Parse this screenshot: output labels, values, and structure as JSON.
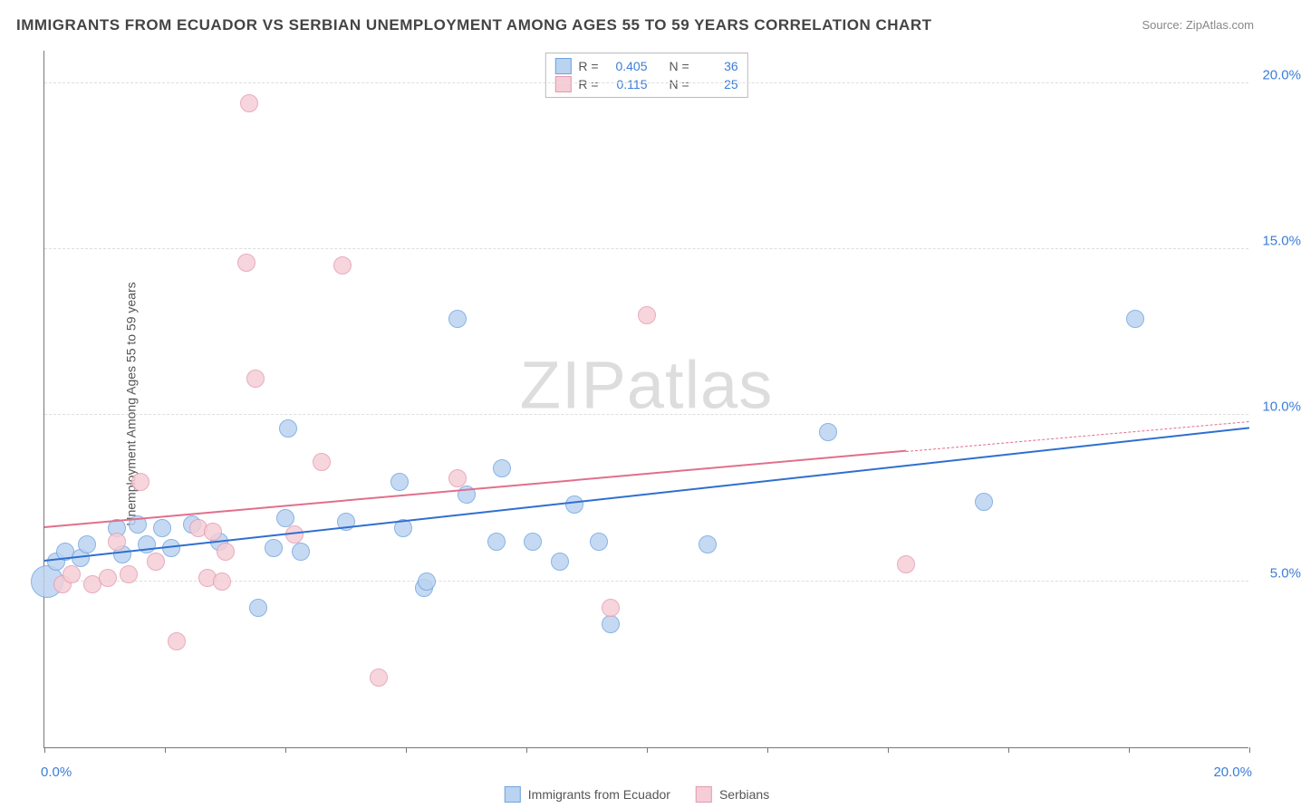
{
  "title": "IMMIGRANTS FROM ECUADOR VS SERBIAN UNEMPLOYMENT AMONG AGES 55 TO 59 YEARS CORRELATION CHART",
  "source": "Source: ZipAtlas.com",
  "watermark_a": "ZIP",
  "watermark_b": "atlas",
  "y_axis_label": "Unemployment Among Ages 55 to 59 years",
  "chart": {
    "type": "scatter",
    "background_color": "#ffffff",
    "grid_color": "#dddddd",
    "axis_color": "#777777",
    "tick_label_color": "#3b7dd8",
    "xlim": [
      0,
      20
    ],
    "ylim": [
      0,
      21
    ],
    "y_gridlines": [
      5,
      10,
      15,
      20
    ],
    "y_tick_labels": [
      "5.0%",
      "10.0%",
      "15.0%",
      "20.0%"
    ],
    "x_ticks": [
      0,
      2,
      4,
      6,
      8,
      10,
      12,
      14,
      16,
      18,
      20
    ],
    "x_tick_labels": {
      "0": "0.0%",
      "20": "20.0%"
    },
    "series": [
      {
        "name": "Immigrants from Ecuador",
        "fill": "#b9d3f0",
        "stroke": "#6fa3e0",
        "line_color": "#2f6fd0",
        "r_label": "R =",
        "r_value": "0.405",
        "n_label": "N =",
        "n_value": "36",
        "trend": {
          "x1": 0,
          "y1": 5.6,
          "x2": 20,
          "y2": 9.6
        },
        "marker_radius": 10,
        "points": [
          {
            "x": 0.05,
            "y": 5.0,
            "r": 18
          },
          {
            "x": 0.2,
            "y": 5.6
          },
          {
            "x": 0.35,
            "y": 5.9
          },
          {
            "x": 0.6,
            "y": 5.7
          },
          {
            "x": 0.7,
            "y": 6.1
          },
          {
            "x": 1.2,
            "y": 6.6
          },
          {
            "x": 1.3,
            "y": 5.8
          },
          {
            "x": 1.55,
            "y": 6.7
          },
          {
            "x": 1.7,
            "y": 6.1
          },
          {
            "x": 1.95,
            "y": 6.6
          },
          {
            "x": 2.1,
            "y": 6.0
          },
          {
            "x": 2.45,
            "y": 6.7
          },
          {
            "x": 3.55,
            "y": 4.2
          },
          {
            "x": 3.8,
            "y": 6.0
          },
          {
            "x": 4.0,
            "y": 6.9
          },
          {
            "x": 4.05,
            "y": 9.6
          },
          {
            "x": 5.0,
            "y": 6.8
          },
          {
            "x": 5.9,
            "y": 8.0
          },
          {
            "x": 5.95,
            "y": 6.6
          },
          {
            "x": 6.3,
            "y": 4.8
          },
          {
            "x": 6.35,
            "y": 5.0
          },
          {
            "x": 6.85,
            "y": 12.9
          },
          {
            "x": 7.0,
            "y": 7.6
          },
          {
            "x": 7.5,
            "y": 6.2
          },
          {
            "x": 7.6,
            "y": 8.4
          },
          {
            "x": 8.1,
            "y": 6.2
          },
          {
            "x": 8.55,
            "y": 5.6
          },
          {
            "x": 8.8,
            "y": 7.3
          },
          {
            "x": 9.2,
            "y": 6.2
          },
          {
            "x": 9.4,
            "y": 3.7
          },
          {
            "x": 11.0,
            "y": 6.1
          },
          {
            "x": 13.0,
            "y": 9.5
          },
          {
            "x": 15.6,
            "y": 7.4
          },
          {
            "x": 18.1,
            "y": 12.9
          },
          {
            "x": 4.25,
            "y": 5.9
          },
          {
            "x": 2.9,
            "y": 6.2
          }
        ]
      },
      {
        "name": "Serbians",
        "fill": "#f6cdd6",
        "stroke": "#e49aaf",
        "line_color": "#e16f8c",
        "r_label": "R =",
        "r_value": "0.115",
        "n_label": "N =",
        "n_value": "25",
        "trend": {
          "x1": 0,
          "y1": 6.6,
          "x2": 14.3,
          "y2": 8.9,
          "dash_to_x": 20,
          "dash_to_y": 9.8
        },
        "marker_radius": 10,
        "points": [
          {
            "x": 0.3,
            "y": 4.9
          },
          {
            "x": 0.45,
            "y": 5.2
          },
          {
            "x": 0.8,
            "y": 4.9
          },
          {
            "x": 1.05,
            "y": 5.1
          },
          {
            "x": 1.4,
            "y": 5.2
          },
          {
            "x": 1.6,
            "y": 8.0
          },
          {
            "x": 1.85,
            "y": 5.6
          },
          {
            "x": 2.2,
            "y": 3.2
          },
          {
            "x": 2.55,
            "y": 6.6
          },
          {
            "x": 2.7,
            "y": 5.1
          },
          {
            "x": 2.95,
            "y": 5.0
          },
          {
            "x": 3.0,
            "y": 5.9
          },
          {
            "x": 3.35,
            "y": 14.6
          },
          {
            "x": 3.4,
            "y": 19.4
          },
          {
            "x": 3.5,
            "y": 11.1
          },
          {
            "x": 4.15,
            "y": 6.4
          },
          {
            "x": 4.6,
            "y": 8.6
          },
          {
            "x": 4.95,
            "y": 14.5
          },
          {
            "x": 5.55,
            "y": 2.1
          },
          {
            "x": 6.85,
            "y": 8.1
          },
          {
            "x": 9.4,
            "y": 4.2
          },
          {
            "x": 10.0,
            "y": 13.0
          },
          {
            "x": 14.3,
            "y": 5.5
          },
          {
            "x": 2.8,
            "y": 6.5
          },
          {
            "x": 1.2,
            "y": 6.2
          }
        ]
      }
    ]
  },
  "legend_bottom": [
    {
      "swatch_fill": "#b9d3f0",
      "swatch_stroke": "#6fa3e0",
      "label": "Immigrants from Ecuador"
    },
    {
      "swatch_fill": "#f6cdd6",
      "swatch_stroke": "#e49aaf",
      "label": "Serbians"
    }
  ]
}
